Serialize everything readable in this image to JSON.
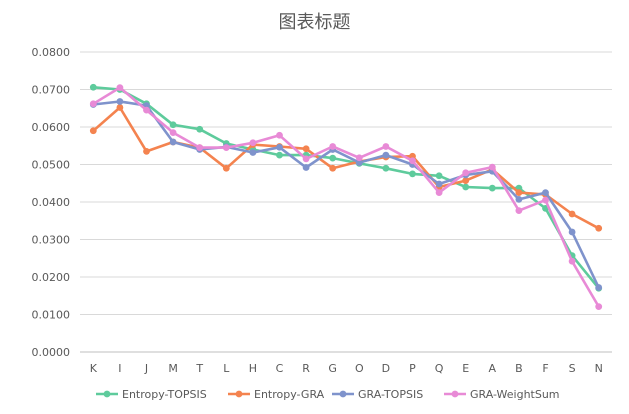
{
  "chart_data": {
    "type": "line",
    "title": "图表标题",
    "categories": [
      "K",
      "I",
      "J",
      "M",
      "T",
      "L",
      "H",
      "C",
      "R",
      "G",
      "O",
      "D",
      "P",
      "Q",
      "E",
      "A",
      "B",
      "F",
      "S",
      "N"
    ],
    "ylim": [
      0,
      0.08
    ],
    "yticks": [
      "0.0000",
      "0.0100",
      "0.0200",
      "0.0300",
      "0.0400",
      "0.0500",
      "0.0600",
      "0.0700",
      "0.0800"
    ],
    "grid": true,
    "legend_position": "bottom",
    "series": [
      {
        "name": "Entropy-TOPSIS",
        "color": "#5ecb9c",
        "values": [
          0.0706,
          0.07,
          0.0662,
          0.0606,
          0.0594,
          0.0556,
          0.054,
          0.0525,
          0.0525,
          0.0517,
          0.0503,
          0.049,
          0.0475,
          0.047,
          0.044,
          0.0437,
          0.0437,
          0.0383,
          0.0257,
          0.017
        ]
      },
      {
        "name": "Entropy-GRA",
        "color": "#f4834f",
        "values": [
          0.059,
          0.0652,
          0.0535,
          0.056,
          0.0545,
          0.049,
          0.0553,
          0.0548,
          0.0542,
          0.049,
          0.0508,
          0.052,
          0.0522,
          0.044,
          0.0457,
          0.0487,
          0.0425,
          0.042,
          0.0368,
          0.033
        ]
      },
      {
        "name": "GRA-TOPSIS",
        "color": "#7f93cc",
        "values": [
          0.066,
          0.0668,
          0.0657,
          0.056,
          0.054,
          0.0547,
          0.0532,
          0.0546,
          0.0492,
          0.054,
          0.0505,
          0.0525,
          0.05,
          0.0448,
          0.0472,
          0.0482,
          0.0407,
          0.0425,
          0.032,
          0.0172
        ]
      },
      {
        "name": "GRA-WeightSum",
        "color": "#e88ad6",
        "values": [
          0.0662,
          0.0705,
          0.0645,
          0.0585,
          0.0545,
          0.0545,
          0.0558,
          0.0578,
          0.0515,
          0.0548,
          0.0518,
          0.0548,
          0.051,
          0.0425,
          0.0478,
          0.0493,
          0.0377,
          0.0405,
          0.0242,
          0.0121
        ]
      }
    ]
  }
}
